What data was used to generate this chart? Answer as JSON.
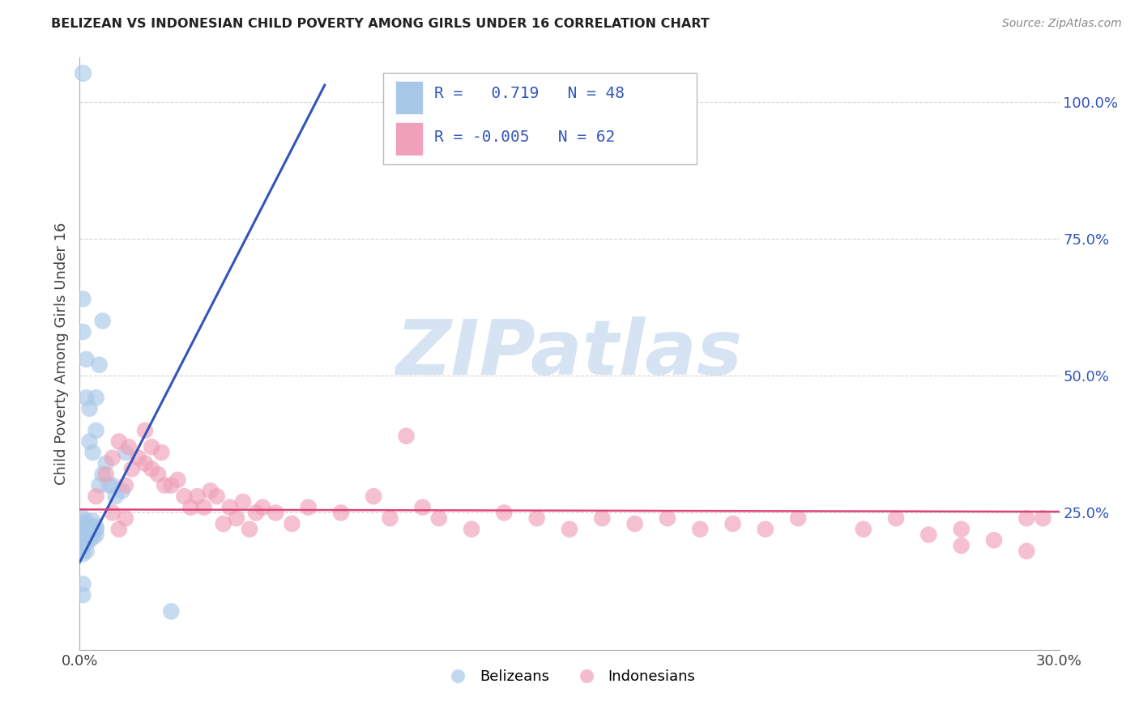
{
  "title": "BELIZEAN VS INDONESIAN CHILD POVERTY AMONG GIRLS UNDER 16 CORRELATION CHART",
  "source": "Source: ZipAtlas.com",
  "ylabel": "Child Poverty Among Girls Under 16",
  "x_min": 0.0,
  "x_max": 0.3,
  "y_min": 0.0,
  "y_max": 1.08,
  "x_ticks": [
    0.0,
    0.3
  ],
  "x_tick_labels": [
    "0.0%",
    "30.0%"
  ],
  "y_ticks": [
    0.0,
    0.25,
    0.5,
    0.75,
    1.0
  ],
  "y_tick_labels": [
    "",
    "25.0%",
    "50.0%",
    "75.0%",
    "100.0%"
  ],
  "belizean_R": 0.719,
  "belizean_N": 48,
  "indonesian_R": -0.005,
  "indonesian_N": 62,
  "belizean_color": "#a8c8e8",
  "indonesian_color": "#f0a0b8",
  "belizean_line_color": "#3355bb",
  "indonesian_line_color": "#dd4477",
  "watermark_text": "ZIPatlas",
  "watermark_color": "#c5d8ee",
  "background_color": "#ffffff",
  "grid_color": "#cccccc",
  "label_color_blue": "#3355bb",
  "title_color": "#222222",
  "source_color": "#888888",
  "belizean_line_x0": 0.0,
  "belizean_line_y0": 0.16,
  "belizean_line_x1": 0.075,
  "belizean_line_y1": 1.03,
  "indonesian_line_x0": 0.0,
  "indonesian_line_y0": 0.256,
  "indonesian_line_x1": 0.3,
  "indonesian_line_y1": 0.252,
  "belizeans_scatter": [
    [
      0.001,
      0.195
    ],
    [
      0.001,
      0.21
    ],
    [
      0.001,
      0.22
    ],
    [
      0.001,
      0.23
    ],
    [
      0.001,
      0.24
    ],
    [
      0.001,
      0.215
    ],
    [
      0.002,
      0.195
    ],
    [
      0.002,
      0.205
    ],
    [
      0.002,
      0.215
    ],
    [
      0.002,
      0.225
    ],
    [
      0.002,
      0.235
    ],
    [
      0.002,
      0.22
    ],
    [
      0.003,
      0.2
    ],
    [
      0.003,
      0.21
    ],
    [
      0.003,
      0.22
    ],
    [
      0.003,
      0.215
    ],
    [
      0.004,
      0.205
    ],
    [
      0.004,
      0.215
    ],
    [
      0.004,
      0.225
    ],
    [
      0.004,
      0.235
    ],
    [
      0.005,
      0.21
    ],
    [
      0.005,
      0.22
    ],
    [
      0.005,
      0.225
    ],
    [
      0.001,
      0.175
    ],
    [
      0.001,
      0.185
    ],
    [
      0.002,
      0.18
    ],
    [
      0.001,
      0.58
    ],
    [
      0.001,
      0.64
    ],
    [
      0.002,
      0.46
    ],
    [
      0.002,
      0.53
    ],
    [
      0.003,
      0.44
    ],
    [
      0.003,
      0.38
    ],
    [
      0.004,
      0.36
    ],
    [
      0.005,
      0.4
    ],
    [
      0.005,
      0.46
    ],
    [
      0.006,
      0.52
    ],
    [
      0.007,
      0.6
    ],
    [
      0.006,
      0.3
    ],
    [
      0.007,
      0.32
    ],
    [
      0.008,
      0.34
    ],
    [
      0.009,
      0.3
    ],
    [
      0.01,
      0.3
    ],
    [
      0.011,
      0.28
    ],
    [
      0.013,
      0.29
    ],
    [
      0.014,
      0.36
    ],
    [
      0.001,
      0.1
    ],
    [
      0.001,
      0.12
    ],
    [
      0.028,
      0.07
    ]
  ],
  "indonesians_scatter": [
    [
      0.005,
      0.28
    ],
    [
      0.008,
      0.32
    ],
    [
      0.01,
      0.35
    ],
    [
      0.012,
      0.38
    ],
    [
      0.014,
      0.3
    ],
    [
      0.015,
      0.37
    ],
    [
      0.016,
      0.33
    ],
    [
      0.018,
      0.35
    ],
    [
      0.02,
      0.4
    ],
    [
      0.02,
      0.34
    ],
    [
      0.022,
      0.33
    ],
    [
      0.022,
      0.37
    ],
    [
      0.024,
      0.32
    ],
    [
      0.025,
      0.36
    ],
    [
      0.026,
      0.3
    ],
    [
      0.028,
      0.3
    ],
    [
      0.03,
      0.31
    ],
    [
      0.032,
      0.28
    ],
    [
      0.034,
      0.26
    ],
    [
      0.036,
      0.28
    ],
    [
      0.038,
      0.26
    ],
    [
      0.04,
      0.29
    ],
    [
      0.042,
      0.28
    ],
    [
      0.044,
      0.23
    ],
    [
      0.046,
      0.26
    ],
    [
      0.048,
      0.24
    ],
    [
      0.05,
      0.27
    ],
    [
      0.052,
      0.22
    ],
    [
      0.054,
      0.25
    ],
    [
      0.056,
      0.26
    ],
    [
      0.06,
      0.25
    ],
    [
      0.065,
      0.23
    ],
    [
      0.07,
      0.26
    ],
    [
      0.08,
      0.25
    ],
    [
      0.09,
      0.28
    ],
    [
      0.095,
      0.24
    ],
    [
      0.1,
      0.39
    ],
    [
      0.105,
      0.26
    ],
    [
      0.11,
      0.24
    ],
    [
      0.12,
      0.22
    ],
    [
      0.13,
      0.25
    ],
    [
      0.14,
      0.24
    ],
    [
      0.15,
      0.22
    ],
    [
      0.16,
      0.24
    ],
    [
      0.17,
      0.23
    ],
    [
      0.18,
      0.24
    ],
    [
      0.19,
      0.22
    ],
    [
      0.2,
      0.23
    ],
    [
      0.21,
      0.22
    ],
    [
      0.22,
      0.24
    ],
    [
      0.24,
      0.22
    ],
    [
      0.25,
      0.24
    ],
    [
      0.26,
      0.21
    ],
    [
      0.27,
      0.22
    ],
    [
      0.28,
      0.2
    ],
    [
      0.29,
      0.24
    ],
    [
      0.295,
      0.24
    ],
    [
      0.01,
      0.25
    ],
    [
      0.012,
      0.22
    ],
    [
      0.014,
      0.24
    ],
    [
      0.27,
      0.19
    ],
    [
      0.29,
      0.18
    ]
  ]
}
